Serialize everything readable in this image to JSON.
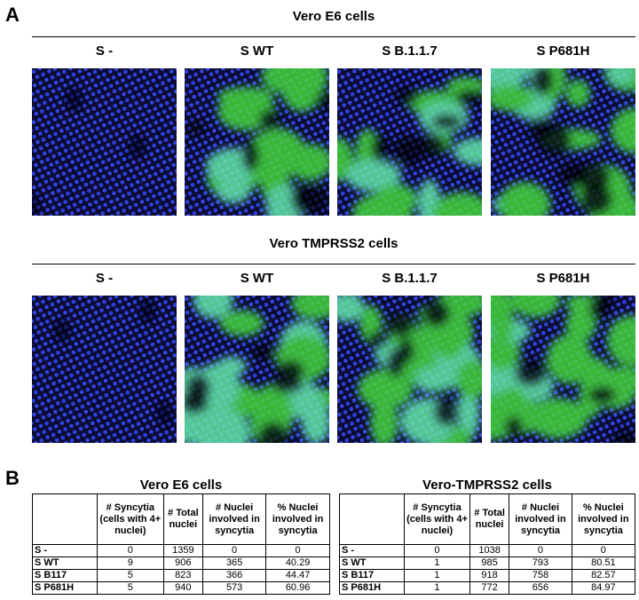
{
  "panel_a": {
    "label": "A",
    "sections": [
      {
        "title": "Vero E6 cells",
        "columns": [
          "S -",
          "S WT",
          "S B.1.1.7",
          "S P681H"
        ]
      },
      {
        "title": "Vero TMPRSS2 cells",
        "columns": [
          "S -",
          "S WT",
          "S B.1.1.7",
          "S P681H"
        ]
      }
    ]
  },
  "panel_b": {
    "label": "B",
    "tables": [
      {
        "title": "Vero E6 cells",
        "header": [
          "# Syncytia (cells with 4+ nuclei)",
          "# Total nuclei",
          "# Nuclei involved in syncytia",
          "% Nuclei involved in syncytia"
        ],
        "rows": [
          [
            "S -",
            0,
            1359,
            0,
            0
          ],
          [
            "S WT",
            9,
            906,
            365,
            40.29
          ],
          [
            "S B117",
            5,
            823,
            366,
            44.47
          ],
          [
            "S P681H",
            5,
            940,
            573,
            60.96
          ]
        ]
      },
      {
        "title": "Vero-TMPRSS2 cells",
        "header": [
          "# Syncytia (cells with 4+ nuclei)",
          "# Total nuclei",
          "# Nuclei involved in syncytia",
          "% Nuclei involved in syncytia"
        ],
        "rows": [
          [
            "S -",
            0,
            1038,
            0,
            0
          ],
          [
            "S WT",
            1,
            985,
            793,
            80.51
          ],
          [
            "S B117",
            1,
            918,
            758,
            82.57
          ],
          [
            "S P681H",
            1,
            772,
            656,
            84.97
          ]
        ]
      }
    ]
  }
}
